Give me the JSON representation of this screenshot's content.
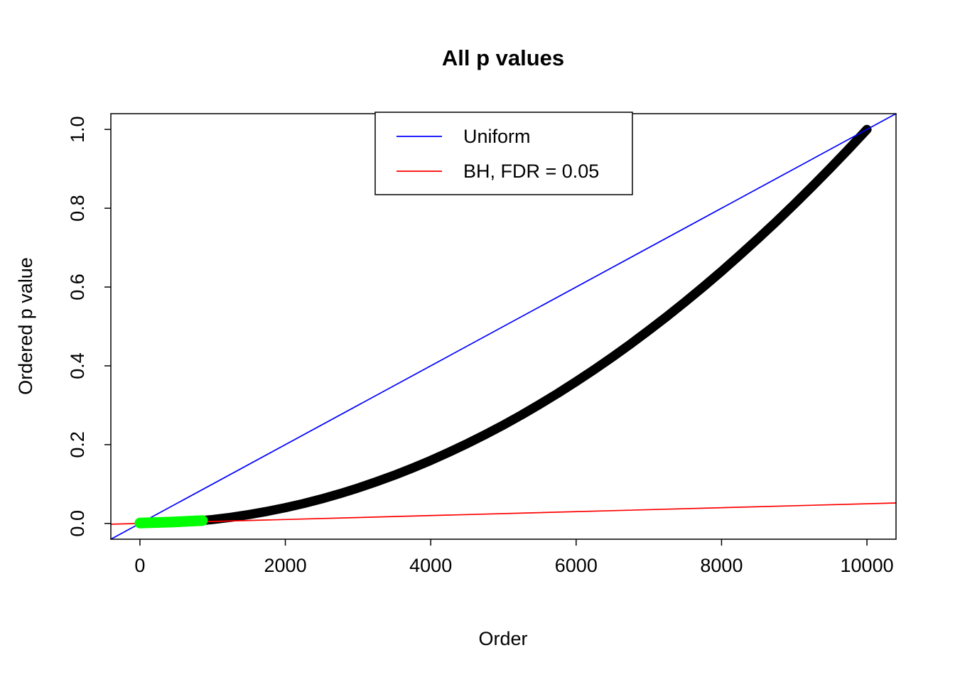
{
  "chart_data": {
    "type": "line",
    "title": "All p values",
    "xlabel": "Order",
    "ylabel": "Ordered p value",
    "xlim": [
      0,
      10000
    ],
    "ylim": [
      0,
      1
    ],
    "grid": false,
    "x_ticks": [
      0,
      2000,
      4000,
      6000,
      8000,
      10000
    ],
    "x_tick_labels": [
      "0",
      "2000",
      "4000",
      "6000",
      "8000",
      "10000"
    ],
    "y_ticks": [
      0.0,
      0.2,
      0.4,
      0.6,
      0.8,
      1.0
    ],
    "y_tick_labels": [
      "0.0",
      "0.2",
      "0.4",
      "0.6",
      "0.8",
      "1.0"
    ],
    "legend": {
      "position": "top-center",
      "entries": [
        {
          "label": "Uniform",
          "color": "#0000FF"
        },
        {
          "label": "BH, FDR = 0.05",
          "color": "#FF0000"
        }
      ]
    },
    "series": [
      {
        "name": "ordered-p-values-curve",
        "kind": "thick-curve",
        "color": "#000000",
        "width": 13,
        "x": [
          0,
          250,
          500,
          750,
          1000,
          1250,
          1500,
          1750,
          2000,
          2250,
          2500,
          2750,
          3000,
          3250,
          3500,
          3750,
          4000,
          4250,
          4500,
          4750,
          5000,
          5250,
          5500,
          5750,
          6000,
          6250,
          6500,
          6750,
          7000,
          7250,
          7500,
          7750,
          8000,
          8250,
          8500,
          8750,
          9000,
          9250,
          9500,
          9750,
          10000
        ],
        "y": [
          0.001,
          0.0012,
          0.0025,
          0.0056,
          0.01,
          0.0156,
          0.0225,
          0.0306,
          0.04,
          0.0506,
          0.0625,
          0.0756,
          0.09,
          0.1056,
          0.1225,
          0.1406,
          0.16,
          0.1806,
          0.2025,
          0.2256,
          0.25,
          0.2756,
          0.3025,
          0.3306,
          0.36,
          0.3906,
          0.4225,
          0.4556,
          0.49,
          0.5256,
          0.5625,
          0.6006,
          0.64,
          0.6806,
          0.7225,
          0.7656,
          0.81,
          0.8556,
          0.9025,
          0.9506,
          1.0
        ],
        "description": "Sorted p-values of 10000 tests"
      },
      {
        "name": "uniform-reference-line",
        "kind": "line",
        "color": "#0000FF",
        "width": 1.7,
        "points": [
          [
            -400,
            -0.04
          ],
          [
            10400,
            1.04
          ]
        ]
      },
      {
        "name": "bh-threshold-line",
        "kind": "line",
        "color": "#FF0000",
        "width": 1.7,
        "points": [
          [
            -400,
            -0.002
          ],
          [
            10400,
            0.052
          ]
        ]
      },
      {
        "name": "significant-p-values-segment",
        "kind": "thick-curve",
        "color": "#00FF00",
        "width": 15,
        "x": [
          0,
          430,
          860
        ],
        "y": [
          0.001,
          0.0035,
          0.0074
        ],
        "description": "P-values called significant by BH at FDR 0.05 (roughly the first 860 ordered p-values)"
      }
    ]
  }
}
